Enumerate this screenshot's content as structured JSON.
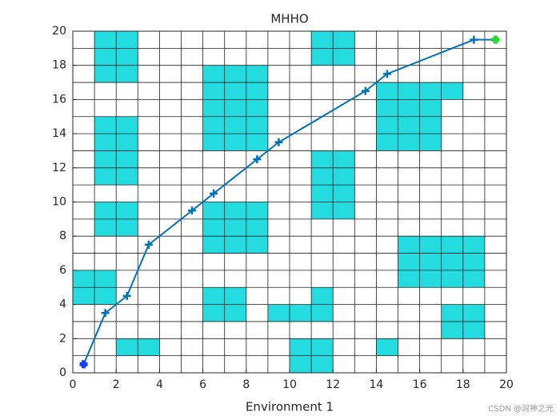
{
  "chart_data": {
    "type": "grid_path",
    "title": "MHHO",
    "x_label": "Environment 1",
    "xlim": [
      0,
      20
    ],
    "ylim": [
      0,
      20
    ],
    "xticks": [
      0,
      2,
      4,
      6,
      8,
      10,
      12,
      14,
      16,
      18,
      20
    ],
    "yticks": [
      0,
      2,
      4,
      6,
      8,
      10,
      12,
      14,
      16,
      18,
      20
    ],
    "grid_step": 1,
    "obstacle_color": "#24dcdf",
    "obstacles": [
      [
        1,
        17
      ],
      [
        2,
        17
      ],
      [
        1,
        18
      ],
      [
        2,
        18
      ],
      [
        1,
        19
      ],
      [
        2,
        19
      ],
      [
        11,
        18
      ],
      [
        12,
        18
      ],
      [
        11,
        19
      ],
      [
        12,
        19
      ],
      [
        6,
        13
      ],
      [
        7,
        13
      ],
      [
        8,
        13
      ],
      [
        6,
        14
      ],
      [
        7,
        14
      ],
      [
        8,
        14
      ],
      [
        6,
        15
      ],
      [
        7,
        15
      ],
      [
        8,
        15
      ],
      [
        6,
        16
      ],
      [
        7,
        16
      ],
      [
        8,
        16
      ],
      [
        6,
        17
      ],
      [
        7,
        17
      ],
      [
        8,
        17
      ],
      [
        14,
        16
      ],
      [
        15,
        16
      ],
      [
        16,
        16
      ],
      [
        17,
        16
      ],
      [
        14,
        13
      ],
      [
        15,
        13
      ],
      [
        16,
        13
      ],
      [
        14,
        14
      ],
      [
        15,
        14
      ],
      [
        16,
        14
      ],
      [
        14,
        15
      ],
      [
        15,
        15
      ],
      [
        16,
        15
      ],
      [
        1,
        11
      ],
      [
        2,
        11
      ],
      [
        1,
        12
      ],
      [
        2,
        12
      ],
      [
        1,
        13
      ],
      [
        2,
        13
      ],
      [
        1,
        14
      ],
      [
        2,
        14
      ],
      [
        11,
        9
      ],
      [
        12,
        9
      ],
      [
        11,
        10
      ],
      [
        12,
        10
      ],
      [
        11,
        11
      ],
      [
        12,
        11
      ],
      [
        11,
        12
      ],
      [
        12,
        12
      ],
      [
        1,
        8
      ],
      [
        2,
        8
      ],
      [
        1,
        9
      ],
      [
        2,
        9
      ],
      [
        6,
        7
      ],
      [
        7,
        7
      ],
      [
        8,
        7
      ],
      [
        6,
        8
      ],
      [
        7,
        8
      ],
      [
        8,
        8
      ],
      [
        6,
        9
      ],
      [
        7,
        9
      ],
      [
        8,
        9
      ],
      [
        15,
        5
      ],
      [
        16,
        5
      ],
      [
        17,
        5
      ],
      [
        18,
        5
      ],
      [
        15,
        6
      ],
      [
        16,
        6
      ],
      [
        17,
        6
      ],
      [
        18,
        6
      ],
      [
        15,
        7
      ],
      [
        16,
        7
      ],
      [
        17,
        7
      ],
      [
        18,
        7
      ],
      [
        0,
        4
      ],
      [
        1,
        4
      ],
      [
        0,
        5
      ],
      [
        1,
        5
      ],
      [
        6,
        3
      ],
      [
        7,
        3
      ],
      [
        6,
        4
      ],
      [
        7,
        4
      ],
      [
        9,
        3
      ],
      [
        10,
        3
      ],
      [
        11,
        3
      ],
      [
        11,
        4
      ],
      [
        17,
        2
      ],
      [
        18,
        2
      ],
      [
        17,
        3
      ],
      [
        18,
        3
      ],
      [
        2,
        1
      ],
      [
        3,
        1
      ],
      [
        10,
        0
      ],
      [
        11,
        0
      ],
      [
        10,
        1
      ],
      [
        11,
        1
      ],
      [
        14,
        1
      ]
    ],
    "path": {
      "color": "#0072bd",
      "x": [
        0.5,
        1.5,
        2.5,
        3.5,
        5.5,
        6.5,
        8.5,
        9.5,
        13.5,
        14.5,
        18.5,
        19.5
      ],
      "y": [
        0.5,
        3.5,
        4.5,
        7.5,
        9.5,
        10.5,
        12.5,
        13.5,
        16.5,
        17.5,
        19.5,
        19.5
      ]
    },
    "start_color": "#1040ff",
    "end_color": "#22dd22",
    "watermark": "CSDN @润神之光"
  }
}
